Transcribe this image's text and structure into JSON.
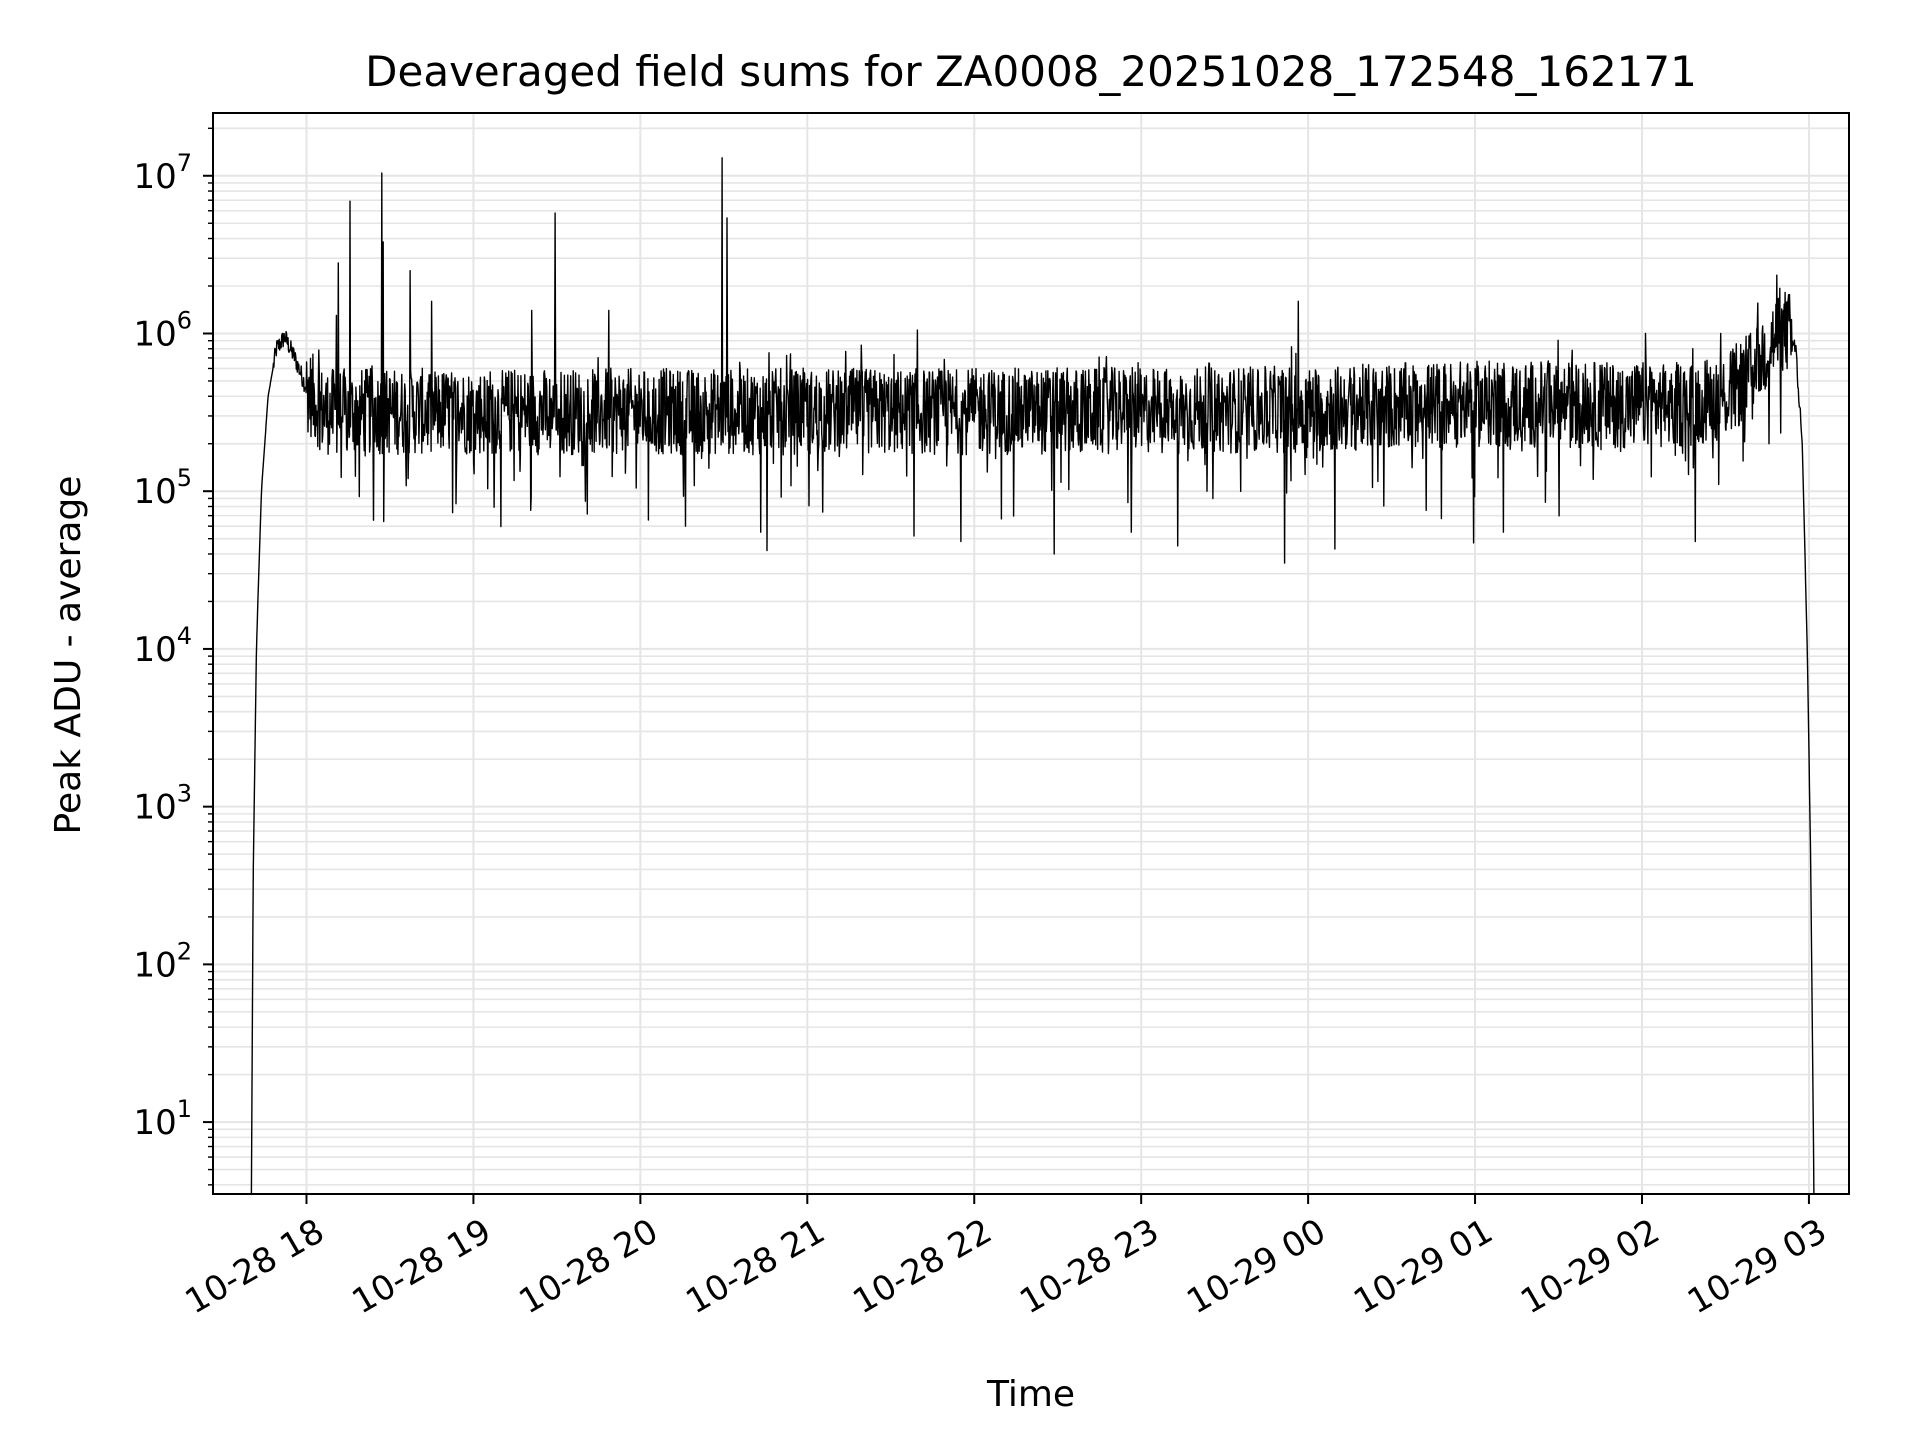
{
  "chart_data": {
    "type": "line",
    "title": "Deaveraged field sums for ZA0008_20251028_172548_162171",
    "xlabel": "Time",
    "ylabel": "Peak ADU - average",
    "yscale": "log",
    "ylim": [
      3.5,
      25000000
    ],
    "xlim_hours": [
      17.44,
      27.24
    ],
    "grid": true,
    "line_color": "#000000",
    "grid_color": "#e5e5e5",
    "x_ticks": [
      {
        "hour": 18,
        "label": "10-28 18"
      },
      {
        "hour": 19,
        "label": "10-28 19"
      },
      {
        "hour": 20,
        "label": "10-28 20"
      },
      {
        "hour": 21,
        "label": "10-28 21"
      },
      {
        "hour": 22,
        "label": "10-28 22"
      },
      {
        "hour": 23,
        "label": "10-28 23"
      },
      {
        "hour": 24,
        "label": "10-29 00"
      },
      {
        "hour": 25,
        "label": "10-29 01"
      },
      {
        "hour": 26,
        "label": "10-29 02"
      },
      {
        "hour": 27,
        "label": "10-29 03"
      }
    ],
    "y_ticks": [
      {
        "value": 10,
        "base": "10",
        "exp": "1"
      },
      {
        "value": 100,
        "base": "10",
        "exp": "2"
      },
      {
        "value": 1000,
        "base": "10",
        "exp": "3"
      },
      {
        "value": 10000,
        "base": "10",
        "exp": "4"
      },
      {
        "value": 100000,
        "base": "10",
        "exp": "5"
      },
      {
        "value": 1000000,
        "base": "10",
        "exp": "6"
      },
      {
        "value": 10000000,
        "base": "10",
        "exp": "7"
      }
    ],
    "series": [
      {
        "name": "deaveraged field sum",
        "envelope": [
          {
            "hour": 17.67,
            "value": 3.5
          },
          {
            "hour": 17.68,
            "value": 300
          },
          {
            "hour": 17.7,
            "value": 10000
          },
          {
            "hour": 17.73,
            "value": 100000
          },
          {
            "hour": 17.77,
            "value": 400000
          },
          {
            "hour": 17.82,
            "value": 800000
          },
          {
            "hour": 17.87,
            "value": 950000
          },
          {
            "hour": 17.93,
            "value": 700000
          },
          {
            "hour": 18.0,
            "value": 450000
          },
          {
            "hour": 18.1,
            "value": 320000
          },
          {
            "hour": 19.0,
            "value": 320000
          },
          {
            "hour": 22.0,
            "value": 320000
          },
          {
            "hour": 24.0,
            "value": 330000
          },
          {
            "hour": 25.0,
            "value": 360000
          },
          {
            "hour": 26.2,
            "value": 350000
          },
          {
            "hour": 26.5,
            "value": 400000
          },
          {
            "hour": 26.65,
            "value": 550000
          },
          {
            "hour": 26.78,
            "value": 900000
          },
          {
            "hour": 26.87,
            "value": 1050000
          },
          {
            "hour": 26.92,
            "value": 800000
          },
          {
            "hour": 26.96,
            "value": 200000
          },
          {
            "hour": 26.99,
            "value": 10000
          },
          {
            "hour": 27.01,
            "value": 500
          },
          {
            "hour": 27.03,
            "value": 3.5
          }
        ],
        "spikes": [
          {
            "hour": 18.18,
            "value": 1300000
          },
          {
            "hour": 18.19,
            "value": 2800000
          },
          {
            "hour": 18.26,
            "value": 6900000
          },
          {
            "hour": 18.45,
            "value": 10400000
          },
          {
            "hour": 18.46,
            "value": 3800000
          },
          {
            "hour": 18.62,
            "value": 2500000
          },
          {
            "hour": 18.75,
            "value": 1600000
          },
          {
            "hour": 19.35,
            "value": 1400000
          },
          {
            "hour": 19.49,
            "value": 5800000
          },
          {
            "hour": 19.81,
            "value": 1400000
          },
          {
            "hour": 20.49,
            "value": 13000000
          },
          {
            "hour": 20.52,
            "value": 5400000
          },
          {
            "hour": 21.66,
            "value": 1050000
          },
          {
            "hour": 23.94,
            "value": 1600000
          },
          {
            "hour": 26.02,
            "value": 1000000
          },
          {
            "hour": 26.47,
            "value": 1000000
          },
          {
            "hour": 26.69,
            "value": 1100000
          },
          {
            "hour": 26.82,
            "value": 1300000
          }
        ],
        "dips": [
          {
            "hour": 20.27,
            "value": 60000
          },
          {
            "hour": 20.72,
            "value": 55000
          },
          {
            "hour": 20.76,
            "value": 42000
          },
          {
            "hour": 21.64,
            "value": 52000
          },
          {
            "hour": 21.92,
            "value": 48000
          },
          {
            "hour": 22.48,
            "value": 40000
          },
          {
            "hour": 22.94,
            "value": 55000
          },
          {
            "hour": 23.22,
            "value": 45000
          },
          {
            "hour": 23.86,
            "value": 35000
          },
          {
            "hour": 24.16,
            "value": 43000
          },
          {
            "hour": 24.99,
            "value": 47000
          },
          {
            "hour": 25.17,
            "value": 55000
          },
          {
            "hour": 26.32,
            "value": 48000
          }
        ]
      }
    ]
  }
}
